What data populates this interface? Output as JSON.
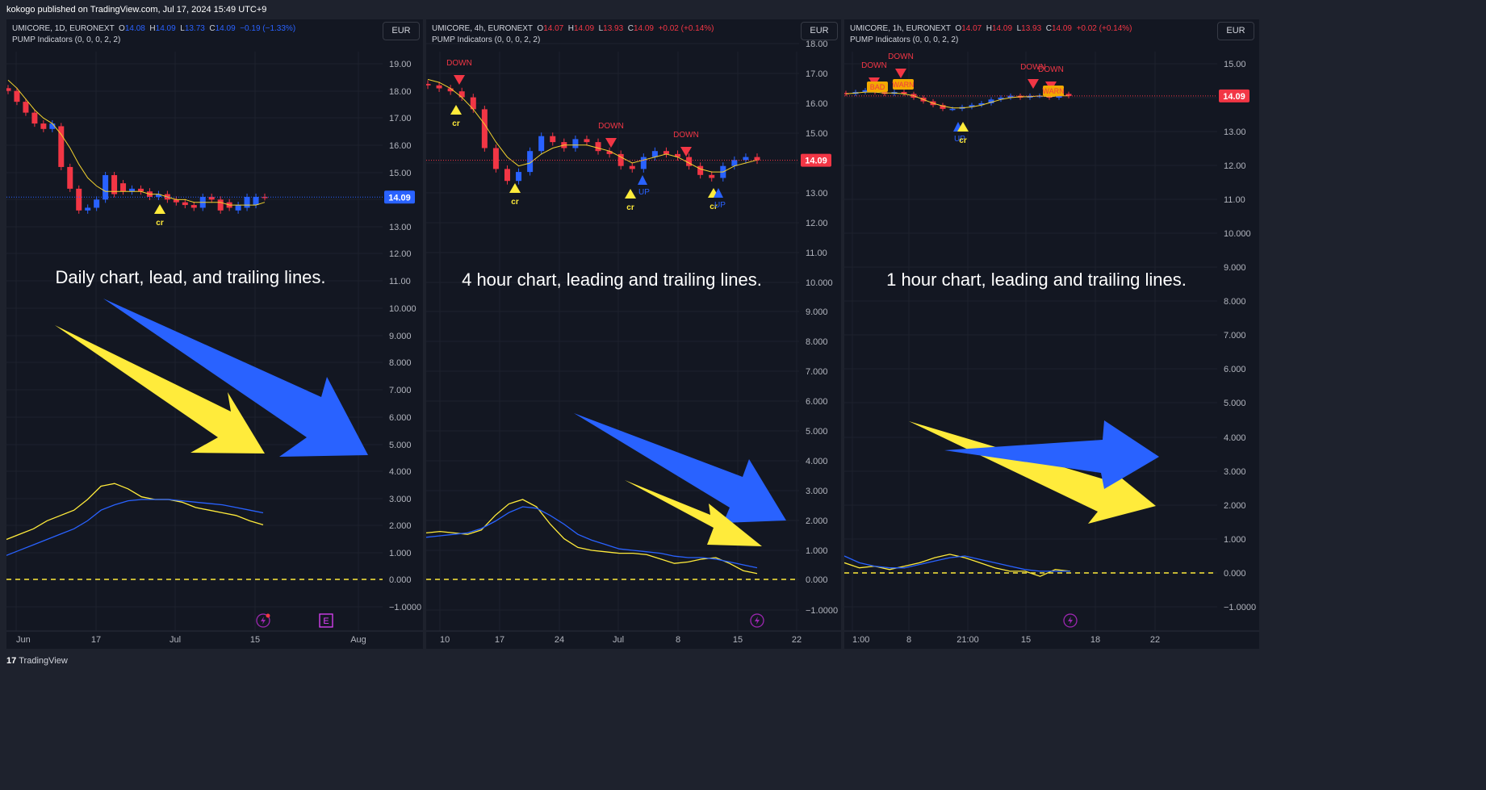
{
  "publisher": "kokogo published on TradingView.com, Jul 17, 2024 15:49 UTC+9",
  "brand": "TradingView",
  "colors": {
    "up": "#2962ff",
    "down": "#f23645",
    "ma": "#f2d22e",
    "lead": "#ffeb3b",
    "trail": "#2962ff",
    "bg": "#131722",
    "grid": "#1e222d"
  },
  "panels": [
    {
      "symbol": "UMICORE, 1D, EURONEXT",
      "o": "14.08",
      "h": "14.09",
      "l": "13.73",
      "c": "14.09",
      "chg": "−0.19 (−1.33%)",
      "indicator": "PUMP Indicators (0, 0, 0, 2, 2)",
      "currency": "EUR",
      "price_tag": "14.09",
      "annotation": "Daily chart, lead, and trailing lines.",
      "xticks": [
        "Jun",
        "17",
        "Jul",
        "15",
        "Aug"
      ],
      "signals": [
        {
          "label": "cr"
        }
      ],
      "event_icon": "E"
    },
    {
      "symbol": "UMICORE, 4h, EURONEXT",
      "o": "14.07",
      "h": "14.09",
      "l": "13.93",
      "c": "14.09",
      "chg": "+0.02 (+0.14%)",
      "indicator": "PUMP Indicators (0, 0, 0, 2, 2)",
      "currency": "EUR",
      "price_tag": "14.09",
      "annotation": "4 hour chart, leading and trailing lines.",
      "xticks": [
        "10",
        "17",
        "24",
        "Jul",
        "8",
        "15",
        "22"
      ],
      "signals": [
        {
          "label": "DOWN"
        },
        {
          "label": "cr"
        },
        {
          "label": "cr"
        },
        {
          "label": "DOWN"
        },
        {
          "label": "cr"
        },
        {
          "label": "UP"
        },
        {
          "label": "DOWN"
        },
        {
          "label": "cr"
        },
        {
          "label": "UP"
        }
      ]
    },
    {
      "symbol": "UMICORE, 1h, EURONEXT",
      "o": "14.07",
      "h": "14.09",
      "l": "13.93",
      "c": "14.09",
      "chg": "+0.02 (+0.14%)",
      "indicator": "PUMP Indicators (0, 0, 0, 2, 2)",
      "currency": "EUR",
      "price_tag": "14.09",
      "annotation": "1 hour chart, leading and trailing lines.",
      "xticks": [
        "1:00",
        "8",
        "21:00",
        "15",
        "18",
        "22"
      ],
      "signals": [
        {
          "label": "DOWN"
        },
        {
          "label": "DOWN"
        },
        {
          "label": "BAD"
        },
        {
          "label": "WARN"
        },
        {
          "label": "BAD"
        },
        {
          "label": "DOWN"
        },
        {
          "label": "DOWN"
        },
        {
          "label": "WARN"
        },
        {
          "label": "UP"
        },
        {
          "label": "cr"
        }
      ]
    }
  ],
  "chart_data": [
    {
      "type": "line",
      "title": "UMICORE, 1D, EURONEXT",
      "price_axis": {
        "ticks": [
          "19.00",
          "18.00",
          "17.00",
          "16.00",
          "15.00",
          "14.00",
          "13.00"
        ]
      },
      "osc_axis": {
        "ticks": [
          "12.00",
          "11.00",
          "10.000",
          "9.000",
          "8.000",
          "7.000",
          "6.000",
          "5.000",
          "4.000",
          "3.000",
          "2.000",
          "1.000",
          "0.000",
          "−1.0000"
        ]
      },
      "price": {
        "open": [
          18.1,
          18.0,
          17.6,
          17.2,
          16.8,
          16.6,
          16.7,
          15.2,
          14.4,
          13.6,
          13.7,
          14.0,
          14.9,
          14.6,
          14.3,
          14.4,
          14.3,
          14.1,
          14.2,
          14.0,
          13.9,
          13.8,
          13.7,
          14.1,
          14.0,
          13.9,
          13.6,
          13.7,
          13.8,
          14.1
        ],
        "close": [
          18.0,
          17.6,
          17.2,
          16.8,
          16.6,
          16.8,
          15.2,
          14.4,
          13.6,
          13.7,
          14.0,
          14.9,
          14.2,
          14.3,
          14.4,
          14.3,
          14.1,
          14.2,
          14.0,
          13.9,
          13.8,
          13.7,
          14.1,
          14.0,
          13.6,
          13.7,
          13.8,
          14.1,
          14.1,
          14.09
        ]
      },
      "ma": [
        18.4,
        18.1,
        17.7,
        17.3,
        17.0,
        16.8,
        16.4,
        15.9,
        15.3,
        14.8,
        14.5,
        14.3,
        14.3,
        14.3,
        14.3,
        14.3,
        14.2,
        14.2,
        14.1,
        14.0,
        14.0,
        13.9,
        13.9,
        13.9,
        13.9,
        13.8,
        13.8,
        13.8,
        13.8,
        13.9
      ],
      "series": [
        {
          "name": "lead",
          "values": [
            1.5,
            1.7,
            1.9,
            2.2,
            2.4,
            2.6,
            3.0,
            3.5,
            3.6,
            3.4,
            3.1,
            3.0,
            3.0,
            2.9,
            2.7,
            2.6,
            2.5,
            2.4,
            2.2,
            2.05
          ]
        },
        {
          "name": "trail",
          "values": [
            0.9,
            1.1,
            1.3,
            1.5,
            1.7,
            1.9,
            2.2,
            2.6,
            2.8,
            2.95,
            3.0,
            3.0,
            3.0,
            2.95,
            2.9,
            2.85,
            2.8,
            2.7,
            2.6,
            2.5
          ]
        }
      ],
      "zero_line": 0.0
    },
    {
      "type": "line",
      "title": "UMICORE, 4h, EURONEXT",
      "price_axis": {
        "ticks": [
          "18.00",
          "17.00",
          "16.00",
          "15.00",
          "14.00",
          "13.00",
          "12.00",
          "11.00",
          "10.000"
        ]
      },
      "osc_axis": {
        "ticks": [
          "9.000",
          "8.000",
          "7.000",
          "6.000",
          "5.000",
          "4.000",
          "3.000",
          "2.000",
          "1.000",
          "0.000",
          "−1.0000"
        ]
      },
      "price": {
        "close": [
          16.6,
          16.5,
          16.4,
          16.2,
          15.8,
          14.5,
          13.8,
          13.4,
          13.7,
          14.4,
          14.9,
          14.7,
          14.5,
          14.8,
          14.7,
          14.4,
          14.3,
          13.9,
          13.8,
          14.2,
          14.4,
          14.3,
          14.2,
          13.9,
          13.6,
          13.5,
          13.9,
          14.1,
          14.2,
          14.09
        ]
      },
      "ma": [
        16.8,
        16.7,
        16.5,
        16.2,
        15.8,
        15.3,
        14.7,
        14.2,
        13.9,
        14.0,
        14.3,
        14.5,
        14.6,
        14.6,
        14.6,
        14.5,
        14.4,
        14.2,
        14.0,
        14.1,
        14.2,
        14.3,
        14.2,
        14.0,
        13.8,
        13.7,
        13.7,
        13.9,
        14.0,
        14.1
      ],
      "series": [
        {
          "name": "lead",
          "values": [
            1.6,
            1.65,
            1.6,
            1.55,
            1.7,
            2.2,
            2.6,
            2.75,
            2.5,
            1.9,
            1.4,
            1.1,
            1.0,
            0.95,
            0.9,
            0.9,
            0.85,
            0.7,
            0.55,
            0.6,
            0.7,
            0.75,
            0.55,
            0.3,
            0.2
          ]
        },
        {
          "name": "trail",
          "values": [
            1.45,
            1.5,
            1.55,
            1.6,
            1.75,
            2.0,
            2.3,
            2.5,
            2.45,
            2.2,
            1.9,
            1.55,
            1.35,
            1.2,
            1.05,
            1.0,
            0.95,
            0.9,
            0.8,
            0.75,
            0.75,
            0.7,
            0.6,
            0.5,
            0.4
          ]
        }
      ],
      "zero_line": 0.0
    },
    {
      "type": "line",
      "title": "UMICORE, 1h, EURONEXT",
      "price_axis": {
        "ticks": [
          "15.00",
          "14.00",
          "13.00",
          "12.00",
          "11.00",
          "10.000",
          "9.000",
          "8.000",
          "7.000",
          "6.000",
          "5.000",
          "4.000",
          "3.000",
          "2.000",
          "1.000",
          "0.000",
          "−1.0000"
        ]
      },
      "price": {
        "close": [
          14.2,
          14.3,
          14.4,
          14.3,
          14.2,
          14.3,
          14.2,
          14.0,
          13.8,
          13.6,
          13.4,
          13.4,
          13.5,
          13.6,
          13.7,
          13.9,
          14.0,
          14.1,
          14.0,
          14.1,
          14.1,
          14.0,
          14.2,
          14.09
        ]
      },
      "ma": [
        14.2,
        14.25,
        14.3,
        14.3,
        14.25,
        14.25,
        14.2,
        14.1,
        13.9,
        13.7,
        13.55,
        13.45,
        13.45,
        13.5,
        13.6,
        13.75,
        13.9,
        14.0,
        14.05,
        14.05,
        14.1,
        14.05,
        14.1,
        14.1
      ],
      "series": [
        {
          "name": "lead",
          "values": [
            0.3,
            0.15,
            0.2,
            0.1,
            0.2,
            0.3,
            0.45,
            0.55,
            0.45,
            0.3,
            0.15,
            0.05,
            0.05,
            -0.1,
            0.1,
            0.05
          ]
        },
        {
          "name": "trail",
          "values": [
            0.5,
            0.3,
            0.2,
            0.15,
            0.15,
            0.25,
            0.35,
            0.45,
            0.5,
            0.4,
            0.3,
            0.2,
            0.1,
            0.05,
            0.05,
            0.05
          ]
        }
      ],
      "zero_line": 0.0
    }
  ]
}
